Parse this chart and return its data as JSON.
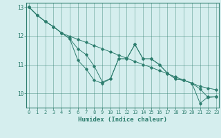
{
  "xlabel": "Humidex (Indice chaleur)",
  "x": [
    0,
    1,
    2,
    3,
    4,
    5,
    6,
    7,
    8,
    9,
    10,
    11,
    12,
    13,
    14,
    15,
    16,
    17,
    18,
    19,
    20,
    21,
    22,
    23
  ],
  "line1": [
    13.0,
    12.72,
    12.5,
    12.32,
    12.1,
    11.98,
    11.88,
    11.77,
    11.66,
    11.55,
    11.44,
    11.33,
    11.22,
    11.11,
    11.0,
    10.9,
    10.79,
    10.68,
    10.57,
    10.46,
    10.35,
    10.24,
    10.18,
    10.12
  ],
  "line2": [
    13.0,
    12.72,
    12.5,
    12.32,
    12.1,
    11.9,
    11.55,
    11.35,
    10.95,
    10.4,
    10.5,
    11.2,
    11.2,
    11.7,
    11.2,
    11.2,
    11.0,
    10.7,
    10.5,
    10.45,
    10.35,
    10.15,
    9.85,
    9.88
  ],
  "line3": [
    13.0,
    12.72,
    12.5,
    12.32,
    12.1,
    11.9,
    11.15,
    10.85,
    10.45,
    10.35,
    10.5,
    11.2,
    11.2,
    11.7,
    11.2,
    11.2,
    11.0,
    10.7,
    10.5,
    10.45,
    10.35,
    9.65,
    9.88,
    9.88
  ],
  "line_color": "#2d7d6e",
  "bg_color": "#d5eeee",
  "grid_color": "#2d7d6e",
  "ylim": [
    9.5,
    13.15
  ],
  "xlim": [
    -0.3,
    23.3
  ],
  "yticks": [
    10,
    11,
    12,
    13
  ],
  "xticks": [
    0,
    1,
    2,
    3,
    4,
    5,
    6,
    7,
    8,
    9,
    10,
    11,
    12,
    13,
    14,
    15,
    16,
    17,
    18,
    19,
    20,
    21,
    22,
    23
  ]
}
